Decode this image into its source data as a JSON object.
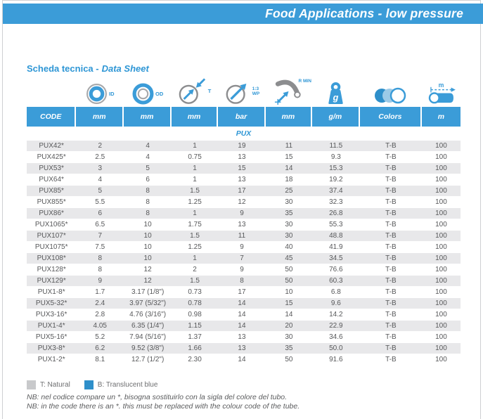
{
  "banner": {
    "title": "Food Applications - low pressure",
    "color": "#3b9cd8"
  },
  "heading": {
    "text": "Scheda tecnica -",
    "text_italic": "Data Sheet"
  },
  "icon_row": {
    "id_label": "ID",
    "od_label": "OD",
    "t_label": "T",
    "wp_ratio_label": "1:3",
    "wp_label": "WP",
    "rmin_label": "R MIN",
    "weight_label": "g",
    "length_label": "m"
  },
  "table": {
    "group_label": "PUX",
    "headers": [
      "CODE",
      "mm",
      "mm",
      "mm",
      "bar",
      "mm",
      "g/m",
      "Colors",
      "m"
    ],
    "rows": [
      [
        "PUX42*",
        "2",
        "4",
        "1",
        "19",
        "11",
        "11.5",
        "T-B",
        "100"
      ],
      [
        "PUX425*",
        "2.5",
        "4",
        "0.75",
        "13",
        "15",
        "9.3",
        "T-B",
        "100"
      ],
      [
        "PUX53*",
        "3",
        "5",
        "1",
        "15",
        "14",
        "15.3",
        "T-B",
        "100"
      ],
      [
        "PUX64*",
        "4",
        "6",
        "1",
        "13",
        "18",
        "19.2",
        "T-B",
        "100"
      ],
      [
        "PUX85*",
        "5",
        "8",
        "1.5",
        "17",
        "25",
        "37.4",
        "T-B",
        "100"
      ],
      [
        "PUX855*",
        "5.5",
        "8",
        "1.25",
        "12",
        "30",
        "32.3",
        "T-B",
        "100"
      ],
      [
        "PUX86*",
        "6",
        "8",
        "1",
        "9",
        "35",
        "26.8",
        "T-B",
        "100"
      ],
      [
        "PUX1065*",
        "6.5",
        "10",
        "1.75",
        "13",
        "30",
        "55.3",
        "T-B",
        "100"
      ],
      [
        "PUX107*",
        "7",
        "10",
        "1.5",
        "11",
        "30",
        "48.8",
        "T-B",
        "100"
      ],
      [
        "PUX1075*",
        "7.5",
        "10",
        "1.25",
        "9",
        "40",
        "41.9",
        "T-B",
        "100"
      ],
      [
        "PUX108*",
        "8",
        "10",
        "1",
        "7",
        "45",
        "34.5",
        "T-B",
        "100"
      ],
      [
        "PUX128*",
        "8",
        "12",
        "2",
        "9",
        "50",
        "76.6",
        "T-B",
        "100"
      ],
      [
        "PUX129*",
        "9",
        "12",
        "1.5",
        "8",
        "50",
        "60.3",
        "T-B",
        "100"
      ],
      [
        "PUX1-8*",
        "1.7",
        "3.17 (1/8\")",
        "0.73",
        "17",
        "10",
        "6.8",
        "T-B",
        "100"
      ],
      [
        "PUX5-32*",
        "2.4",
        "3.97 (5/32\")",
        "0.78",
        "14",
        "15",
        "9.6",
        "T-B",
        "100"
      ],
      [
        "PUX3-16*",
        "2.8",
        "4.76 (3/16\")",
        "0.98",
        "14",
        "14",
        "14.2",
        "T-B",
        "100"
      ],
      [
        "PUX1-4*",
        "4.05",
        "6.35 (1/4\")",
        "1.15",
        "14",
        "20",
        "22.9",
        "T-B",
        "100"
      ],
      [
        "PUX5-16*",
        "5.2",
        "7.94 (5/16\")",
        "1.37",
        "13",
        "30",
        "34.6",
        "T-B",
        "100"
      ],
      [
        "PUX3-8*",
        "6.2",
        "9.52 (3/8\")",
        "1.66",
        "13",
        "35",
        "50.0",
        "T-B",
        "100"
      ],
      [
        "PUX1-2*",
        "8.1",
        "12.7 (1/2\")",
        "2.30",
        "14",
        "50",
        "91.6",
        "T-B",
        "100"
      ]
    ]
  },
  "legend": {
    "items": [
      {
        "label": "T: Natural",
        "color": "#c8c9cb"
      },
      {
        "label": "B: Translucent blue",
        "color": "#2e8fca"
      }
    ]
  },
  "notes": {
    "line1": "NB: nel codice compare un *, bisogna sostituirlo con la sigla del colore del tubo.",
    "line2": "NB: in the code there is an *. this must be replaced with the colour code of the tube."
  }
}
